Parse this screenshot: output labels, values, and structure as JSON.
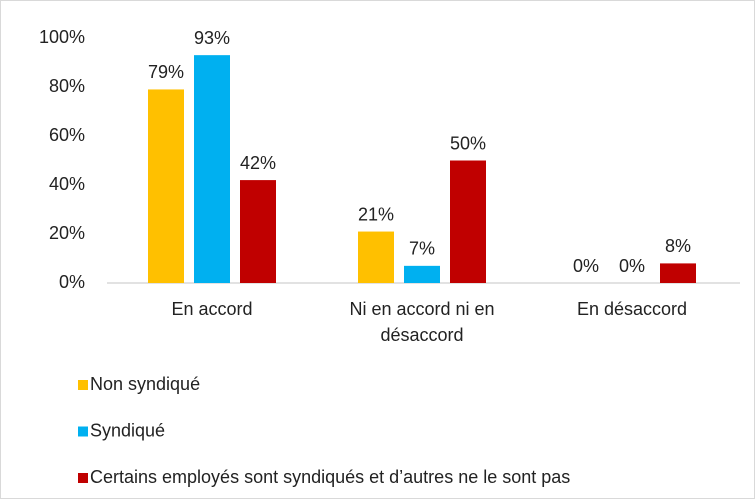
{
  "chart_data": {
    "type": "bar",
    "categories": [
      "En accord",
      "Ni en accord ni en désaccord",
      "En désaccord"
    ],
    "series": [
      {
        "name": "Non syndiqué",
        "color": "#ffc000",
        "values": [
          79,
          21,
          0
        ],
        "value_labels": [
          "79%",
          "21%",
          "0%"
        ]
      },
      {
        "name": "Syndiqué",
        "color": "#00b0f0",
        "values": [
          93,
          7,
          0
        ],
        "value_labels": [
          "93%",
          "7%",
          "0%"
        ]
      },
      {
        "name": "Certains employés sont syndiqués et d’autres ne le sont pas",
        "color": "#c00000",
        "values": [
          42,
          50,
          8
        ],
        "value_labels": [
          "42%",
          "50%",
          "8%"
        ]
      }
    ],
    "ylim": [
      0,
      100
    ],
    "yticks": [
      {
        "value": 0,
        "label": "0%"
      },
      {
        "value": 20,
        "label": "20%"
      },
      {
        "value": 40,
        "label": "40%"
      },
      {
        "value": 60,
        "label": "60%"
      },
      {
        "value": 80,
        "label": "80%"
      },
      {
        "value": 100,
        "label": "100%"
      }
    ],
    "grid": false,
    "legend": "bottom"
  }
}
